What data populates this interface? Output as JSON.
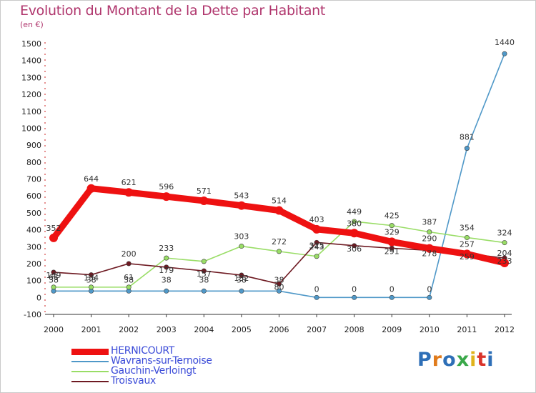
{
  "chart_data": {
    "type": "line",
    "title": "Evolution du Montant de la Dette par Habitant",
    "subtitle": "(en €)",
    "xlabel": "",
    "ylabel": "",
    "categories": [
      "2000",
      "2001",
      "2002",
      "2003",
      "2004",
      "2005",
      "2006",
      "2007",
      "2008",
      "2009",
      "2010",
      "2011",
      "2012"
    ],
    "ylim": [
      -100,
      1500
    ],
    "yticks": [
      -100,
      0,
      100,
      200,
      300,
      400,
      500,
      600,
      700,
      800,
      900,
      1000,
      1100,
      1200,
      1300,
      1400,
      1500
    ],
    "grid": false,
    "legend_position": "bottom-left",
    "series": [
      {
        "name": "HERNICOURT",
        "color": "#ee1111",
        "values": [
          352,
          644,
          621,
          596,
          571,
          543,
          514,
          403,
          380,
          329,
          290,
          257,
          204
        ]
      },
      {
        "name": "Wavrans-sur-Ternoise",
        "color": "#4f98c8",
        "values": [
          38,
          38,
          38,
          38,
          38,
          38,
          38,
          0,
          0,
          0,
          0,
          881,
          1440
        ]
      },
      {
        "name": "Gauchin-Verloingt",
        "color": "#99dd66",
        "values": [
          61,
          61,
          61,
          233,
          213,
          303,
          272,
          243,
          449,
          425,
          387,
          354,
          324
        ]
      },
      {
        "name": "Troisvaux",
        "color": "#6e1a22",
        "values": [
          149,
          134,
          200,
          179,
          157,
          132,
          80,
          325,
          306,
          291,
          278,
          259,
          233
        ]
      }
    ],
    "data_labels": [
      [
        "352",
        "644",
        "621",
        "596",
        "571",
        "543",
        "514",
        "403",
        "380",
        "329",
        "290",
        "257",
        "204"
      ],
      [
        "38",
        "38",
        "38",
        "38",
        "38",
        "38",
        "38",
        "0",
        "0",
        "0",
        "0",
        "881",
        "1440"
      ],
      [
        "61",
        "",
        "61",
        "233",
        "",
        "303",
        "272",
        "243",
        "449",
        "425",
        "387",
        "354",
        "324"
      ],
      [
        "149",
        "134",
        "200",
        "179",
        "157",
        "132",
        "80",
        "325",
        "306",
        "291",
        "278",
        "259",
        "233"
      ]
    ]
  },
  "brand": {
    "text": "Proxiti",
    "letters": [
      {
        "ch": "P",
        "color": "#2e6fb7"
      },
      {
        "ch": "r",
        "color": "#e07b1c"
      },
      {
        "ch": "o",
        "color": "#2e6fb7"
      },
      {
        "ch": "x",
        "color": "#3aa84a"
      },
      {
        "ch": "i",
        "color": "#e0b31c"
      },
      {
        "ch": "t",
        "color": "#d9342b"
      },
      {
        "ch": "i",
        "color": "#2e6fb7"
      }
    ]
  }
}
